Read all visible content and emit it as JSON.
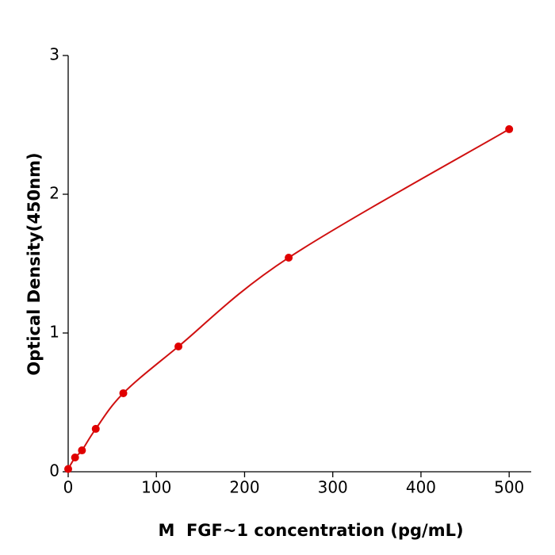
{
  "chart_data": {
    "type": "scatter",
    "x_label": "M  FGF~1 concentration (pg/mL)",
    "y_label": "Optical Density(450nm)",
    "series": [
      {
        "color": "#e00000",
        "curve_color": "#d01010",
        "x": [
          0,
          7.8,
          15.6,
          31.25,
          62.5,
          125,
          250,
          500
        ],
        "values": [
          0.02,
          0.103,
          0.154,
          0.309,
          0.566,
          0.903,
          1.543,
          2.469
        ]
      }
    ],
    "xlim": [
      0,
      525
    ],
    "xticks": [
      0,
      100,
      200,
      300,
      400,
      500
    ],
    "ylim": [
      0,
      3
    ],
    "yticks": [
      0,
      1,
      2,
      3
    ]
  }
}
